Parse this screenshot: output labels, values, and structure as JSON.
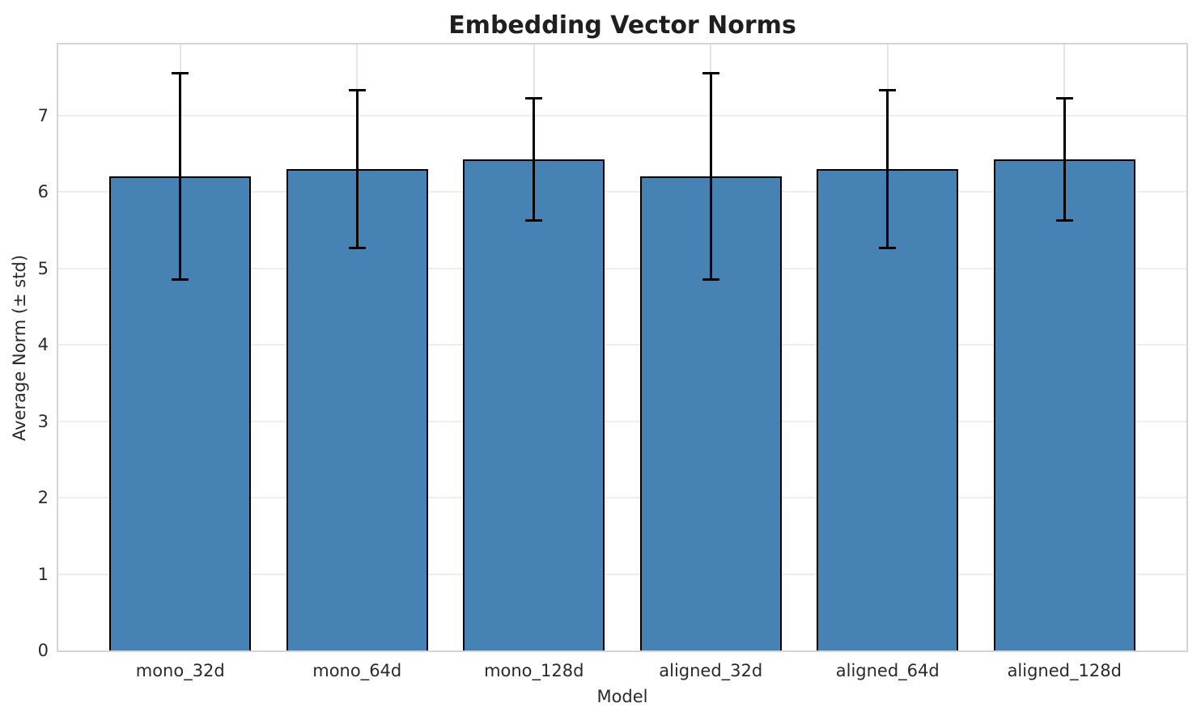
{
  "chart_data": {
    "type": "bar",
    "title": "Embedding Vector Norms",
    "xlabel": "Model",
    "ylabel": "Average Norm (± std)",
    "categories": [
      "mono_32d",
      "mono_64d",
      "mono_128d",
      "aligned_32d",
      "aligned_64d",
      "aligned_128d"
    ],
    "values": [
      6.2,
      6.3,
      6.43,
      6.2,
      6.3,
      6.43
    ],
    "errors": [
      1.35,
      1.03,
      0.8,
      1.35,
      1.03,
      0.8
    ],
    "yticks": [
      0,
      1,
      2,
      3,
      4,
      5,
      6,
      7
    ],
    "ylim": [
      0,
      7.93
    ],
    "x_margin": 0.69,
    "bar_width_units": 0.8,
    "grid": "both",
    "legend": "none",
    "colors": {
      "bar_fill": "#4682b4",
      "bar_edge": "#000000",
      "error_bar": "#000000",
      "grid_h": "#ededed",
      "grid_v": "#e4e4e4",
      "spine": "#d4d4d4",
      "title_text": "#1f1f1f",
      "tick_text": "#2a2a2a"
    }
  }
}
